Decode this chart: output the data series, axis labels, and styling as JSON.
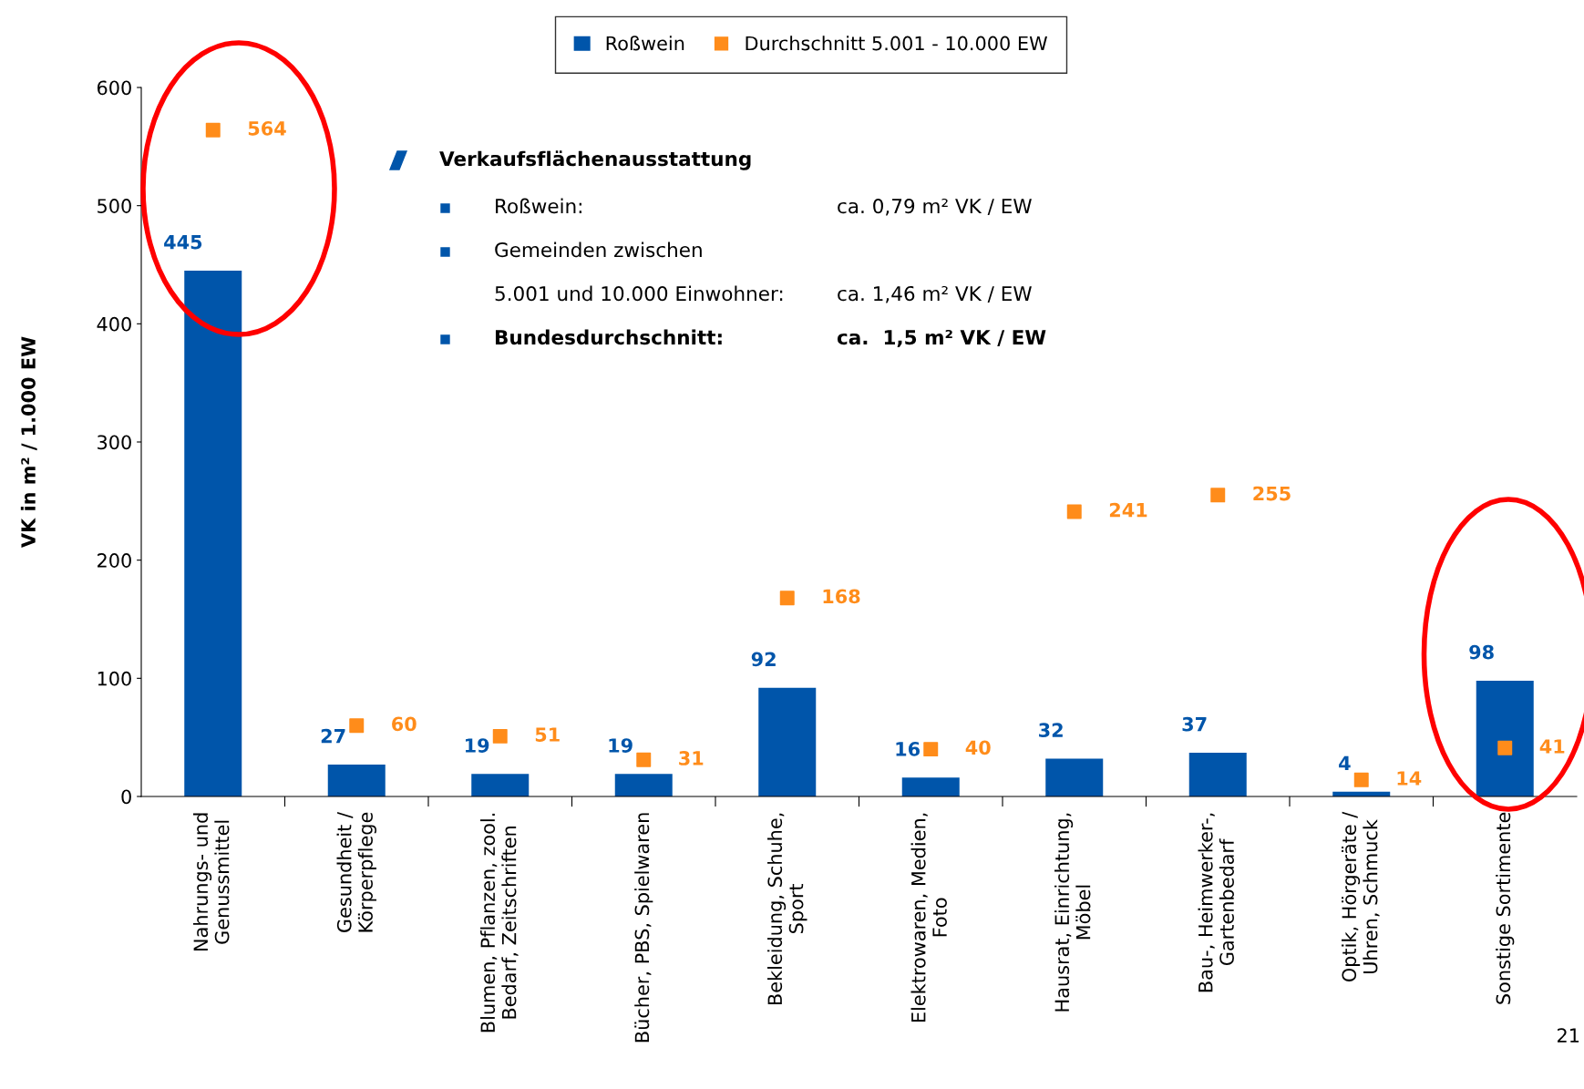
{
  "chart_data": {
    "type": "bar",
    "categories": [
      "Nahrungs- und\nGenussmittel",
      "Gesundheit /\nKörperpflege",
      "Blumen, Pflanzen, zool.\nBedarf, Zeitschriften",
      "Bücher, PBS, Spielwaren",
      "Bekleidung, Schuhe,\nSport",
      "Elektrowaren, Medien,\nFoto",
      "Hausrat, Einrichtung,\nMöbel",
      "Bau-, Heimwerker-,\nGartenbedarf",
      "Optik, Hörgeräte /\nUhren, Schmuck",
      "Sonstige Sortimente"
    ],
    "series": [
      {
        "name": "Roßwein",
        "color": "#0055aa",
        "values": [
          445,
          27,
          19,
          19,
          92,
          16,
          32,
          37,
          4,
          98
        ]
      },
      {
        "name": "Durchschnitt 5.001 - 10.000 EW",
        "type": "scatter",
        "color": "#ff8c1a",
        "marker": "square",
        "values": [
          564,
          60,
          51,
          31,
          168,
          40,
          241,
          255,
          14,
          41
        ]
      }
    ],
    "ylabel": "VK in m² / 1.000 EW",
    "ylim": [
      0,
      600
    ],
    "yticks": [
      0,
      100,
      200,
      300,
      400,
      500,
      600
    ],
    "data_labels": true,
    "legend": "top",
    "grid": false,
    "annotations": [
      "Verkaufsflächenausstattung",
      "Roßwein:",
      "ca. 0,79 m² VK / EW",
      "Gemeinden zwischen",
      "5.001 und 10.000 Einwohner:",
      "ca. 1,46 m² VK / EW",
      "Bundesdurchschnitt:",
      "ca.  1,5 m² VK / EW",
      "21"
    ]
  }
}
